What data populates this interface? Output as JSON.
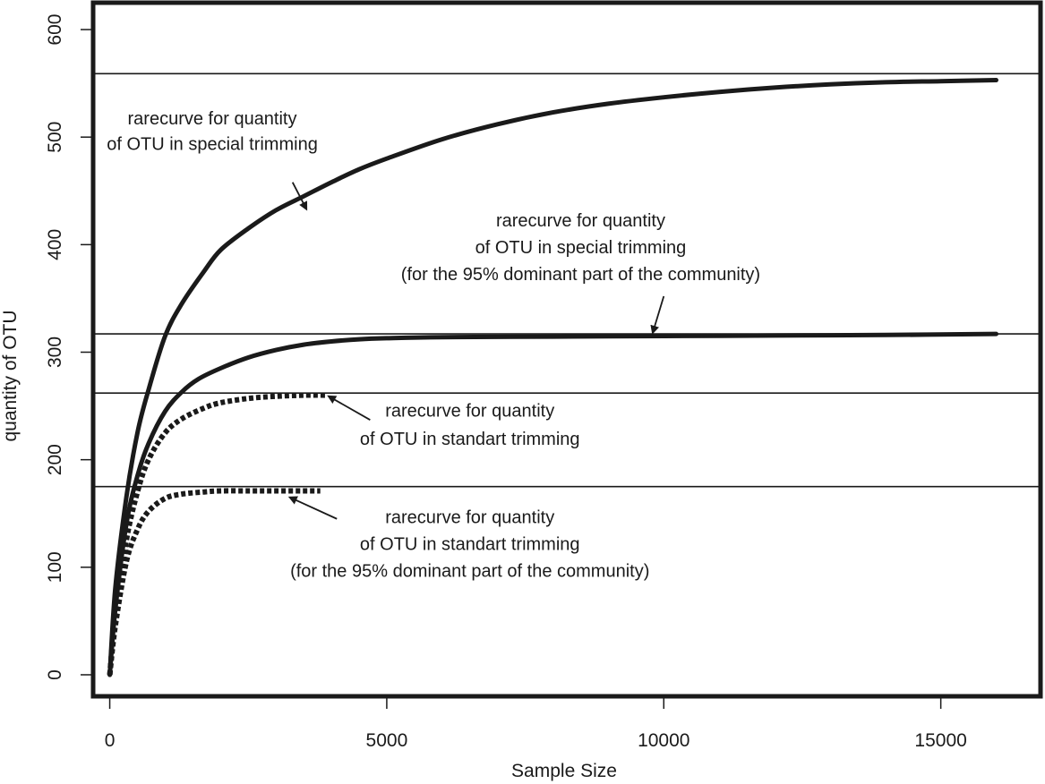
{
  "chart_data": {
    "type": "line",
    "title": "",
    "xlabel": "Sample Size",
    "ylabel": "quantity of OTU",
    "xlim": [
      -300,
      16800
    ],
    "ylim": [
      -20,
      625
    ],
    "x_ticks": [
      0,
      5000,
      10000,
      15000
    ],
    "x_tick_labels": [
      "0",
      "5000",
      "10000",
      "15000"
    ],
    "y_ticks": [
      0,
      100,
      200,
      300,
      400,
      500,
      600
    ],
    "y_tick_labels": [
      "0",
      "100",
      "200",
      "300",
      "400",
      "500",
      "600"
    ],
    "grid": false,
    "legend": "none",
    "colors": {
      "curve": "#1a1a1a",
      "frame": "#1a1a1a",
      "reference_line": "#1a1a1a",
      "background": "#ffffff"
    },
    "reference_lines": [
      {
        "y": 559
      },
      {
        "y": 317
      },
      {
        "y": 262
      },
      {
        "y": 175
      }
    ],
    "series": [
      {
        "style": "solid",
        "x": [
          0,
          100,
          300,
          500,
          700,
          1000,
          1300,
          1700,
          2000,
          2500,
          3000,
          3500,
          4000,
          4500,
          5000,
          6000,
          7000,
          8000,
          9000,
          10000,
          11000,
          12000,
          13000,
          14000,
          15000,
          16000
        ],
        "y": [
          0,
          80,
          165,
          225,
          265,
          315,
          345,
          375,
          395,
          415,
          432,
          445,
          458,
          470,
          480,
          498,
          512,
          523,
          531,
          537,
          542,
          546,
          549,
          551,
          552,
          553
        ]
      },
      {
        "style": "solid",
        "x": [
          0,
          100,
          300,
          500,
          700,
          1000,
          1300,
          1600,
          2000,
          2500,
          3000,
          3500,
          4000,
          4500,
          5000,
          6000,
          8000,
          10000,
          12000,
          14000,
          16000
        ],
        "y": [
          0,
          60,
          140,
          185,
          215,
          245,
          263,
          275,
          285,
          295,
          302,
          307,
          310,
          312,
          313,
          314,
          314.5,
          315,
          315.5,
          316,
          317
        ]
      },
      {
        "style": "dotted",
        "x": [
          0,
          100,
          300,
          500,
          700,
          1000,
          1300,
          1700,
          2000,
          2500,
          3000,
          3500,
          3900
        ],
        "y": [
          0,
          55,
          125,
          170,
          200,
          225,
          238,
          248,
          253,
          257,
          259,
          260,
          260
        ]
      },
      {
        "style": "dotted",
        "x": [
          0,
          100,
          300,
          500,
          700,
          1000,
          1300,
          1700,
          2000,
          2500,
          3000,
          3500,
          3800
        ],
        "y": [
          0,
          45,
          105,
          135,
          152,
          164,
          168,
          170,
          171,
          171,
          171,
          171,
          171
        ]
      }
    ],
    "annotations": [
      {
        "lines": [
          "rarecurve for quantity",
          "of OTU in special trimming"
        ],
        "text_x": 1850,
        "text_y": [
          512,
          488
        ],
        "arrow_from": [
          3300,
          458
        ],
        "arrow_to": [
          3550,
          433
        ]
      },
      {
        "lines": [
          "rarecurve for quantity",
          "of OTU in special trimming",
          "(for the 95% dominant part of the community)"
        ],
        "text_x": 8500,
        "text_y": [
          417,
          392,
          367
        ],
        "arrow_from": [
          10000,
          352
        ],
        "arrow_to": [
          9800,
          318
        ]
      },
      {
        "lines": [
          "rarecurve for quantity",
          "of OTU in standart trimming"
        ],
        "text_x": 6500,
        "text_y": [
          240,
          214
        ],
        "arrow_from": [
          4700,
          237
        ],
        "arrow_to": [
          3950,
          259
        ]
      },
      {
        "lines": [
          "rarecurve for quantity",
          "of OTU in standart trimming",
          "(for the 95% dominant part of the community)"
        ],
        "text_x": 6500,
        "text_y": [
          141,
          116,
          91
        ],
        "arrow_from": [
          4100,
          145
        ],
        "arrow_to": [
          3250,
          165
        ]
      }
    ]
  }
}
